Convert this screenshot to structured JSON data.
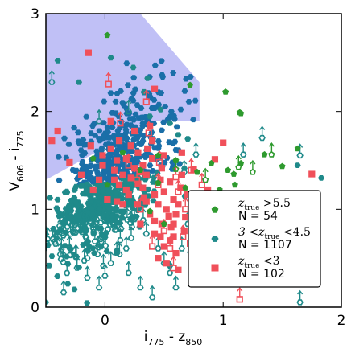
{
  "chart_data": {
    "type": "scatter",
    "xlabel": "i775 - z850",
    "xlabel_main": "i",
    "xlabel_sub1": "775",
    "xlabel_mid": " - z",
    "xlabel_sub2": "850",
    "ylabel": "V606 - i775",
    "ylabel_main": "V",
    "ylabel_sub1": "606",
    "ylabel_mid": " - i",
    "ylabel_sub2": "775",
    "xlim": [
      -0.5,
      2.0
    ],
    "ylim": [
      0.0,
      3.0
    ],
    "xticks": [
      0,
      1,
      2
    ],
    "yticks": [
      0,
      1,
      2,
      3
    ],
    "selection_region": {
      "color": "#b9b9f5",
      "polygon": [
        [
          -0.5,
          1.3
        ],
        [
          0.4,
          1.9
        ],
        [
          0.8,
          1.9
        ],
        [
          0.8,
          2.3
        ],
        [
          0.3,
          3.0
        ],
        [
          -0.5,
          3.0
        ]
      ]
    },
    "legend": {
      "position": "lower-right",
      "entries": [
        {
          "label_math": "z",
          "label_sub": "true",
          "label_rest": " >5.5",
          "n_text": "N = 54",
          "color": "#2e9a2e",
          "marker": "pentagon"
        },
        {
          "label_math": "3 <z",
          "label_sub": "true",
          "label_rest": " <4.5",
          "n_text": "N = 1107",
          "color": "#1f8a8a",
          "marker": "hexagon"
        },
        {
          "label_math": "z",
          "label_sub": "true",
          "label_rest": " <3",
          "n_text": "N = 102",
          "color": "#f0505a",
          "marker": "square"
        }
      ]
    },
    "series": [
      {
        "name": "z_true >5.5",
        "color": "#2e9a2e",
        "marker": "pentagon",
        "points": [
          [
            0.02,
            2.78
          ],
          [
            0.72,
            2.27
          ],
          [
            1.02,
            2.2
          ],
          [
            1.15,
            1.98
          ],
          [
            1.14,
            1.99
          ],
          [
            1.63,
            1.62
          ],
          [
            0.45,
            1.27
          ],
          [
            1.35,
            1.56
          ],
          [
            0.78,
            1.38
          ],
          [
            1.04,
            1.4
          ],
          [
            1.09,
            1.36
          ],
          [
            0.45,
            1.55
          ],
          [
            0.6,
            1.5
          ],
          [
            0.9,
            1.47
          ],
          [
            1.15,
            1.47
          ],
          [
            0.97,
            1.2
          ],
          [
            0.93,
            1.05
          ],
          [
            0.5,
            0.85
          ],
          [
            0.02,
            1.25
          ],
          [
            0.3,
            1.4
          ],
          [
            -0.1,
            1.52
          ],
          [
            0.15,
            1.58
          ],
          [
            0.68,
            1.22
          ],
          [
            0.82,
            1.02
          ],
          [
            1.1,
            1.25
          ],
          [
            1.5,
            1.44
          ],
          [
            0.38,
            0.98
          ]
        ],
        "limits": [
          [
            0.6,
            1.41
          ],
          [
            1.13,
            1.43
          ],
          [
            1.25,
            1.38
          ],
          [
            1.41,
            1.56
          ],
          [
            0.85,
            1.3
          ]
        ]
      },
      {
        "name": "3 <z_true <4.5",
        "color": "#1f8a8a",
        "marker": "hexagon",
        "bulk_seed": 7,
        "bulk_count": 780,
        "bulk_center": [
          0.05,
          1.3
        ],
        "points": [
          [
            -0.4,
            2.52
          ],
          [
            -0.22,
            2.3
          ],
          [
            0.36,
            2.34
          ],
          [
            0.7,
            1.72
          ],
          [
            0.62,
            1.76
          ],
          [
            1.83,
            1.32
          ],
          [
            1.63,
            1.45
          ],
          [
            1.2,
            0.55
          ],
          [
            0.94,
            0.9
          ],
          [
            0.88,
            0.68
          ],
          [
            0.78,
            0.78
          ],
          [
            0.72,
            0.56
          ],
          [
            0.55,
            0.42
          ],
          [
            -0.5,
            0.05
          ],
          [
            0.24,
            2.45
          ],
          [
            0.05,
            2.55
          ],
          [
            0.33,
            2.2
          ],
          [
            0.47,
            2.02
          ],
          [
            0.55,
            1.88
          ],
          [
            0.38,
            1.95
          ]
        ],
        "limits": [
          [
            1.33,
            1.73
          ],
          [
            0.77,
            1.56
          ],
          [
            0.67,
            1.38
          ],
          [
            1.17,
            1.56
          ],
          [
            0.2,
            2.0
          ],
          [
            -0.05,
            1.9
          ],
          [
            -0.45,
            2.3
          ],
          [
            1.65,
            1.55
          ],
          [
            1.0,
            0.85
          ],
          [
            0.25,
            0.9
          ],
          [
            0.18,
            0.6
          ],
          [
            0.1,
            0.55
          ],
          [
            0.05,
            0.45
          ],
          [
            0.0,
            0.32
          ],
          [
            -0.05,
            0.2
          ],
          [
            -0.15,
            0.5
          ],
          [
            0.35,
            0.75
          ],
          [
            0.45,
            0.6
          ],
          [
            0.55,
            0.35
          ],
          [
            0.6,
            0.2
          ],
          [
            0.4,
            0.1
          ],
          [
            0.3,
            0.2
          ],
          [
            0.5,
            0.45
          ],
          [
            1.2,
            0.4
          ],
          [
            1.4,
            0.35
          ],
          [
            1.65,
            0.05
          ],
          [
            -0.35,
            0.15
          ],
          [
            0.65,
            0.6
          ],
          [
            0.7,
            0.85
          ],
          [
            0.2,
            0.35
          ]
        ]
      },
      {
        "name": "z_true <3",
        "color": "#f0505a",
        "marker": "square",
        "points": [
          [
            -0.14,
            2.6
          ],
          [
            0.42,
            2.23
          ],
          [
            0.38,
            1.85
          ],
          [
            -0.02,
            1.55
          ],
          [
            0.5,
            1.55
          ],
          [
            0.65,
            1.58
          ],
          [
            0.75,
            1.41
          ],
          [
            0.93,
            1.51
          ],
          [
            1.0,
            1.68
          ],
          [
            1.75,
            1.36
          ],
          [
            1.15,
            1.0
          ],
          [
            0.87,
            1.2
          ],
          [
            0.54,
            0.93
          ],
          [
            0.48,
            0.85
          ],
          [
            0.58,
            0.72
          ],
          [
            0.6,
            0.55
          ],
          [
            0.52,
            0.45
          ],
          [
            0.67,
            0.78
          ],
          [
            0.28,
            1.58
          ],
          [
            0.12,
            1.7
          ],
          [
            0.18,
            1.52
          ],
          [
            0.08,
            1.4
          ],
          [
            0.22,
            1.32
          ],
          [
            0.32,
            1.22
          ],
          [
            0.27,
            1.05
          ],
          [
            0.12,
            1.25
          ],
          [
            0.02,
            1.1
          ],
          [
            0.15,
            1.05
          ],
          [
            0.35,
            1.35
          ],
          [
            0.42,
            1.15
          ],
          [
            0.47,
            1.3
          ],
          [
            0.62,
            1.05
          ],
          [
            -0.05,
            1.3
          ],
          [
            -0.2,
            1.35
          ],
          [
            -0.3,
            1.48
          ],
          [
            -0.45,
            1.7
          ],
          [
            -0.4,
            1.8
          ],
          [
            0.05,
            1.9
          ],
          [
            0.25,
            1.8
          ],
          [
            0.4,
            1.7
          ],
          [
            0.55,
            1.28
          ],
          [
            0.7,
            1.15
          ],
          [
            0.65,
            1.35
          ],
          [
            0.38,
            0.95
          ],
          [
            0.3,
            0.85
          ],
          [
            0.42,
            0.75
          ],
          [
            0.5,
            0.62
          ],
          [
            0.56,
            0.82
          ],
          [
            0.45,
            1.05
          ],
          [
            0.2,
            1.15
          ],
          [
            -0.1,
            1.2
          ],
          [
            0.1,
            1.5
          ],
          [
            0.32,
            1.45
          ],
          [
            0.6,
            0.95
          ],
          [
            0.48,
            1.42
          ],
          [
            0.72,
            0.65
          ],
          [
            0.58,
            1.1
          ],
          [
            0.35,
            1.08
          ],
          [
            0.15,
            1.35
          ],
          [
            0.25,
            1.42
          ],
          [
            0.05,
            1.62
          ],
          [
            -0.12,
            1.65
          ],
          [
            0.45,
            0.5
          ],
          [
            0.62,
            0.38
          ],
          [
            0.4,
            1.52
          ],
          [
            0.5,
            1.18
          ],
          [
            0.68,
            0.92
          ],
          [
            0.52,
            1.0
          ],
          [
            0.28,
            1.26
          ],
          [
            0.18,
            1.2
          ],
          [
            0.1,
            1.08
          ],
          [
            0.36,
            1.62
          ],
          [
            0.55,
            0.68
          ],
          [
            0.64,
            1.22
          ],
          [
            0.42,
            0.88
          ],
          [
            0.33,
            1.12
          ],
          [
            -0.02,
            1.45
          ],
          [
            0.22,
            1.65
          ],
          [
            0.08,
            1.3
          ],
          [
            0.47,
            0.72
          ],
          [
            0.3,
            1.38
          ],
          [
            0.58,
            0.85
          ]
        ],
        "limits": [
          [
            0.03,
            2.28
          ],
          [
            0.35,
            2.1
          ],
          [
            0.73,
            1.4
          ],
          [
            1.14,
            0.08
          ],
          [
            0.6,
            1.33
          ],
          [
            0.37,
            1.78
          ],
          [
            0.45,
            1.25
          ],
          [
            0.55,
            0.6
          ],
          [
            0.68,
            1.0
          ],
          [
            0.27,
            1.3
          ],
          [
            0.13,
            1.88
          ],
          [
            0.5,
            0.78
          ],
          [
            0.62,
            1.18
          ],
          [
            0.4,
            0.62
          ],
          [
            0.82,
            1.25
          ],
          [
            0.58,
            0.4
          ],
          [
            0.3,
            1.0
          ],
          [
            0.46,
            1.48
          ],
          [
            0.2,
            1.45
          ],
          [
            0.66,
            0.72
          ]
        ]
      }
    ]
  }
}
